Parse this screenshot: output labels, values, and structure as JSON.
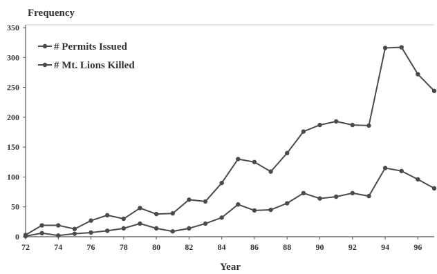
{
  "chart_data": {
    "type": "line",
    "ylabel": "Frequency",
    "xlabel": "Year",
    "xlim": [
      72,
      97
    ],
    "ylim": [
      0,
      350
    ],
    "x_ticks": [
      "72",
      "74",
      "76",
      "78",
      "80",
      "82",
      "84",
      "86",
      "88",
      "90",
      "92",
      "94",
      "96"
    ],
    "y_ticks": [
      "0",
      "50",
      "100",
      "150",
      "200",
      "250",
      "300",
      "350"
    ],
    "x": [
      72,
      73,
      74,
      75,
      76,
      77,
      78,
      79,
      80,
      81,
      82,
      83,
      84,
      85,
      86,
      87,
      88,
      89,
      90,
      91,
      92,
      93,
      94,
      95,
      96,
      97
    ],
    "series": [
      {
        "name": "# Permits Issued",
        "values": [
          3,
          19,
          19,
          13,
          27,
          36,
          30,
          48,
          38,
          39,
          62,
          59,
          90,
          130,
          125,
          109,
          140,
          176,
          187,
          193,
          187,
          186,
          316,
          317,
          272,
          244
        ]
      },
      {
        "name": "# Mt. Lions Killed",
        "values": [
          1,
          6,
          2,
          5,
          7,
          10,
          14,
          22,
          14,
          9,
          14,
          22,
          32,
          54,
          44,
          45,
          56,
          73,
          64,
          67,
          73,
          68,
          115,
          110,
          96,
          81
        ]
      }
    ],
    "legend_position": "top-left",
    "grid": false,
    "line_color": "#4a4a4a"
  }
}
